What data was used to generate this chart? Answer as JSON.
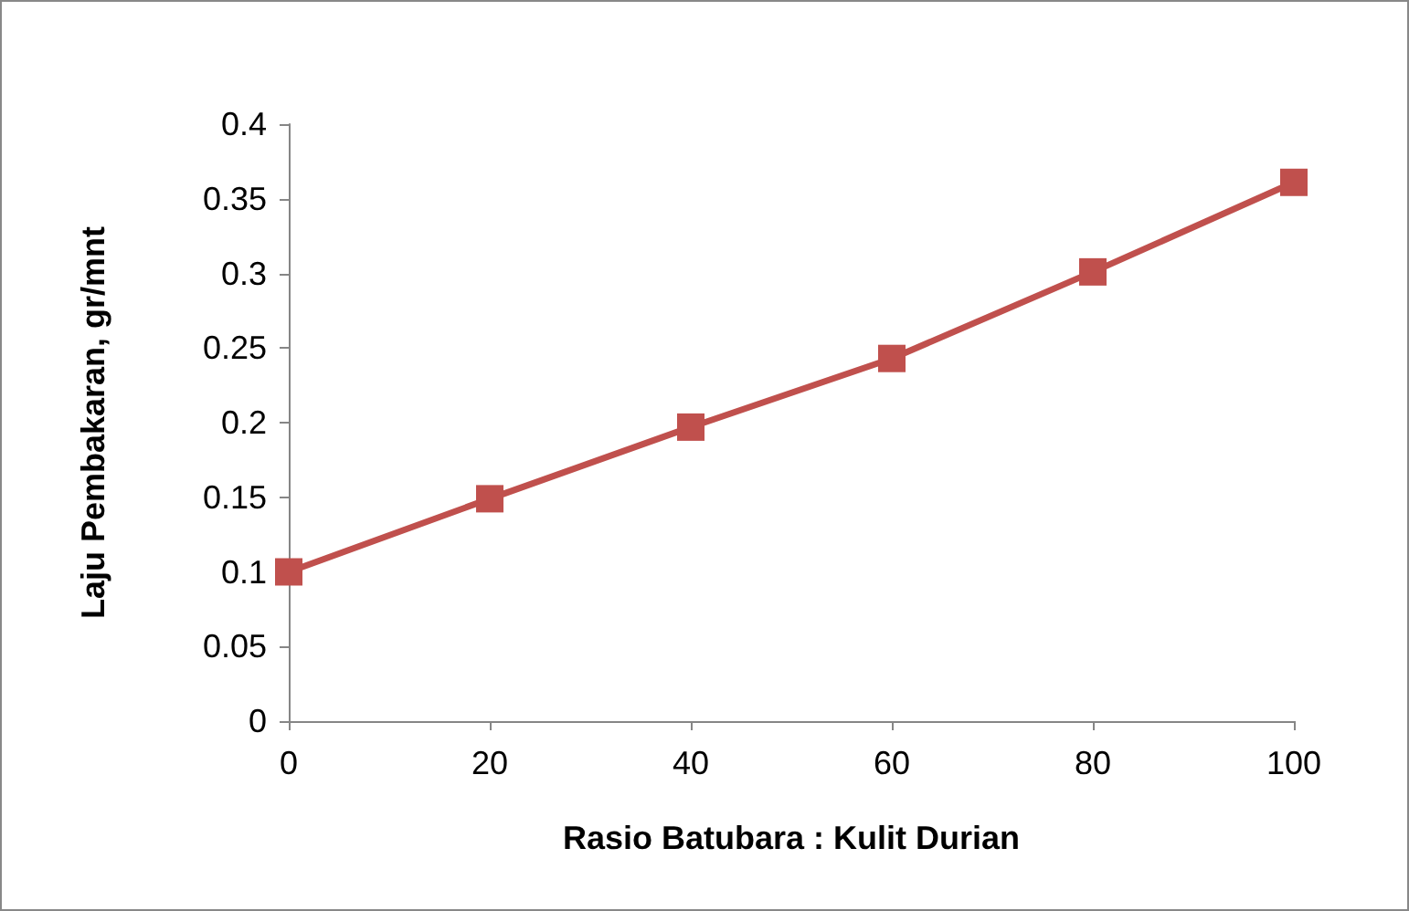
{
  "chart_data": {
    "type": "line",
    "xlabel": "Rasio Batubara : Kulit Durian",
    "ylabel": "Laju Pembakaran, gr/mnt",
    "x": [
      0,
      20,
      40,
      60,
      80,
      100
    ],
    "series": [
      {
        "color": "#c0504d",
        "values": [
          0.1,
          0.149,
          0.197,
          0.243,
          0.301,
          0.361
        ]
      }
    ],
    "xlim": [
      0,
      100
    ],
    "xticks": [
      0,
      20,
      40,
      60,
      80,
      100
    ],
    "ylim": [
      0,
      0.4
    ],
    "yticks": [
      0,
      0.05,
      0.1,
      0.15,
      0.2,
      0.25,
      0.3,
      0.35,
      0.4
    ],
    "grid": false,
    "marker": "square",
    "line_style": "solid"
  }
}
